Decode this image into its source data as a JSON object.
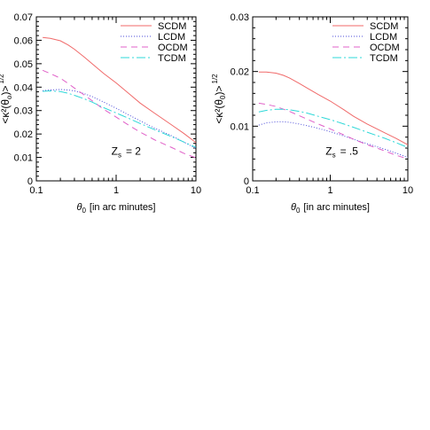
{
  "chart_data": [
    {
      "type": "line",
      "panel": "left",
      "xscale": "log",
      "xlim": [
        0.1,
        10
      ],
      "ylim": [
        0,
        0.07
      ],
      "xticks": [
        "0.1",
        "1",
        "10"
      ],
      "yticks": [
        "0",
        "0.01",
        "0.02",
        "0.03",
        "0.04",
        "0.05",
        "0.06",
        "0.07"
      ],
      "ylabel_parts": {
        "pre": "<κ²(θ",
        "sub": "o",
        "post": ")>",
        "sup": "1/2"
      },
      "xlabel_parts": {
        "symbol": "θ",
        "sub": "0",
        "rest": "[in arc minutes]"
      },
      "annotation": {
        "main": "Z",
        "sub": "s",
        "rest": "= 2"
      },
      "legend": "top-right",
      "series": [
        {
          "name": "SCDM",
          "color": "#f06a6a",
          "dash": "",
          "x": [
            0.12,
            0.15,
            0.2,
            0.25,
            0.3,
            0.4,
            0.5,
            0.7,
            1,
            1.5,
            2,
            3,
            5,
            7,
            10
          ],
          "y": [
            0.0612,
            0.0608,
            0.0598,
            0.058,
            0.0562,
            0.0528,
            0.05,
            0.0458,
            0.0418,
            0.0368,
            0.0332,
            0.029,
            0.0238,
            0.0203,
            0.0163
          ]
        },
        {
          "name": "LCDM",
          "color": "#4b4bd8",
          "dash": "1,2",
          "x": [
            0.12,
            0.15,
            0.2,
            0.25,
            0.3,
            0.4,
            0.5,
            0.7,
            1,
            1.5,
            2,
            3,
            5,
            7,
            10
          ],
          "y": [
            0.0385,
            0.0388,
            0.039,
            0.0388,
            0.0384,
            0.0372,
            0.036,
            0.0336,
            0.031,
            0.0278,
            0.0256,
            0.0226,
            0.0192,
            0.0166,
            0.0138
          ]
        },
        {
          "name": "OCDM",
          "color": "#e060c8",
          "dash": "7,5",
          "x": [
            0.12,
            0.15,
            0.2,
            0.25,
            0.3,
            0.4,
            0.5,
            0.7,
            1,
            1.5,
            2,
            3,
            5,
            7,
            10
          ],
          "y": [
            0.0472,
            0.0458,
            0.0438,
            0.0416,
            0.0396,
            0.0366,
            0.0342,
            0.0305,
            0.0272,
            0.0234,
            0.0208,
            0.0176,
            0.0142,
            0.0118,
            0.0098
          ]
        },
        {
          "name": "TCDM",
          "color": "#2ed8d8",
          "dash": "10,3,2,3",
          "x": [
            0.12,
            0.15,
            0.2,
            0.25,
            0.3,
            0.4,
            0.5,
            0.7,
            1,
            1.5,
            2,
            3,
            5,
            7,
            10
          ],
          "y": [
            0.0382,
            0.0384,
            0.0381,
            0.0374,
            0.0365,
            0.035,
            0.0336,
            0.0312,
            0.029,
            0.0264,
            0.0245,
            0.0219,
            0.0188,
            0.0166,
            0.0143
          ]
        }
      ]
    },
    {
      "type": "line",
      "panel": "right",
      "xscale": "log",
      "xlim": [
        0.1,
        10
      ],
      "ylim": [
        0,
        0.03
      ],
      "xticks": [
        "0.1",
        "1",
        "10"
      ],
      "yticks": [
        "0",
        "0.01",
        "0.02",
        "0.03"
      ],
      "ylabel_parts": {
        "pre": "<κ²(θ",
        "sub": "0",
        "post": ")>",
        "sup": "1/2"
      },
      "xlabel_parts": {
        "symbol": "θ",
        "sub": "0",
        "rest": "[in arc minutes]"
      },
      "annotation": {
        "main": "Z",
        "sub": "s",
        "rest": "= .5"
      },
      "legend": "top-right",
      "series": [
        {
          "name": "SCDM",
          "color": "#f06a6a",
          "dash": "",
          "x": [
            0.12,
            0.15,
            0.2,
            0.25,
            0.3,
            0.4,
            0.5,
            0.7,
            1,
            1.5,
            2,
            3,
            5,
            7,
            10
          ],
          "y": [
            0.0199,
            0.0199,
            0.0197,
            0.0193,
            0.0188,
            0.0178,
            0.017,
            0.0158,
            0.0146,
            0.013,
            0.0118,
            0.0104,
            0.0088,
            0.0078,
            0.0066
          ]
        },
        {
          "name": "LCDM",
          "color": "#4b4bd8",
          "dash": "1,2",
          "x": [
            0.12,
            0.15,
            0.2,
            0.25,
            0.3,
            0.4,
            0.5,
            0.7,
            1,
            1.5,
            2,
            3,
            5,
            7,
            10
          ],
          "y": [
            0.0102,
            0.0106,
            0.0108,
            0.0108,
            0.0107,
            0.0104,
            0.0101,
            0.0096,
            0.009,
            0.0082,
            0.0076,
            0.0068,
            0.0058,
            0.0051,
            0.0043
          ]
        },
        {
          "name": "OCDM",
          "color": "#e060c8",
          "dash": "7,5",
          "x": [
            0.12,
            0.15,
            0.2,
            0.25,
            0.3,
            0.4,
            0.5,
            0.7,
            1,
            1.5,
            2,
            3,
            5,
            7,
            10
          ],
          "y": [
            0.0142,
            0.014,
            0.0136,
            0.0131,
            0.0127,
            0.0119,
            0.0113,
            0.0104,
            0.0095,
            0.0084,
            0.0076,
            0.0066,
            0.0055,
            0.0047,
            0.004
          ]
        },
        {
          "name": "TCDM",
          "color": "#2ed8d8",
          "dash": "10,3,2,3",
          "x": [
            0.12,
            0.15,
            0.2,
            0.25,
            0.3,
            0.4,
            0.5,
            0.7,
            1,
            1.5,
            2,
            3,
            5,
            7,
            10
          ],
          "y": [
            0.0126,
            0.0129,
            0.0131,
            0.0131,
            0.013,
            0.0127,
            0.0124,
            0.0118,
            0.0112,
            0.0104,
            0.0098,
            0.0089,
            0.0078,
            0.007,
            0.0061
          ]
        }
      ]
    }
  ]
}
